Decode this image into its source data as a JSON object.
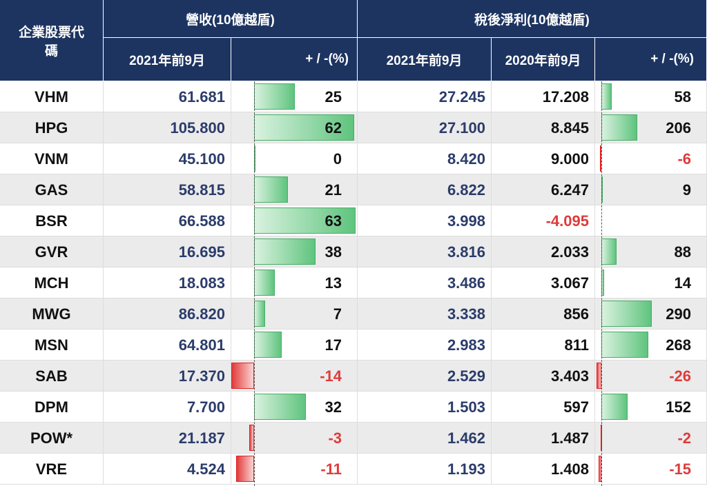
{
  "header": {
    "code": "企業股票代碼",
    "revenue_group": "營收(10億越盾)",
    "profit_group": "稅後淨利(10億越盾)",
    "revenue_2021": "2021年前9月",
    "revenue_change": "+ / -(%)",
    "profit_2021": "2021年前9月",
    "profit_2020": "2020年前9月",
    "profit_change": "+ / -(%)"
  },
  "table": {
    "rows": [
      [
        "VHM",
        "61.681",
        25,
        "27.245",
        "17.208",
        58
      ],
      [
        "HPG",
        "105.800",
        62,
        "27.100",
        "8.845",
        206
      ],
      [
        "VNM",
        "45.100",
        0,
        "8.420",
        "9.000",
        -6
      ],
      [
        "GAS",
        "58.815",
        21,
        "6.822",
        "6.247",
        9
      ],
      [
        "BSR",
        "66.588",
        63,
        "3.998",
        "-4.095",
        null
      ],
      [
        "GVR",
        "16.695",
        38,
        "3.816",
        "2.033",
        88
      ],
      [
        "MCH",
        "18.083",
        13,
        "3.486",
        "3.067",
        14
      ],
      [
        "MWG",
        "86.820",
        7,
        "3.338",
        "856",
        290
      ],
      [
        "MSN",
        "64.801",
        17,
        "2.983",
        "811",
        268
      ],
      [
        "SAB",
        "17.370",
        -14,
        "2.529",
        "3.403",
        -26
      ],
      [
        "DPM",
        "7.700",
        32,
        "1.503",
        "597",
        152
      ],
      [
        "POW*",
        "21.187",
        -3,
        "1.462",
        "1.487",
        -2
      ],
      [
        "VRE",
        "4.524",
        -11,
        "1.193",
        "1.408",
        -15
      ]
    ]
  }
}
